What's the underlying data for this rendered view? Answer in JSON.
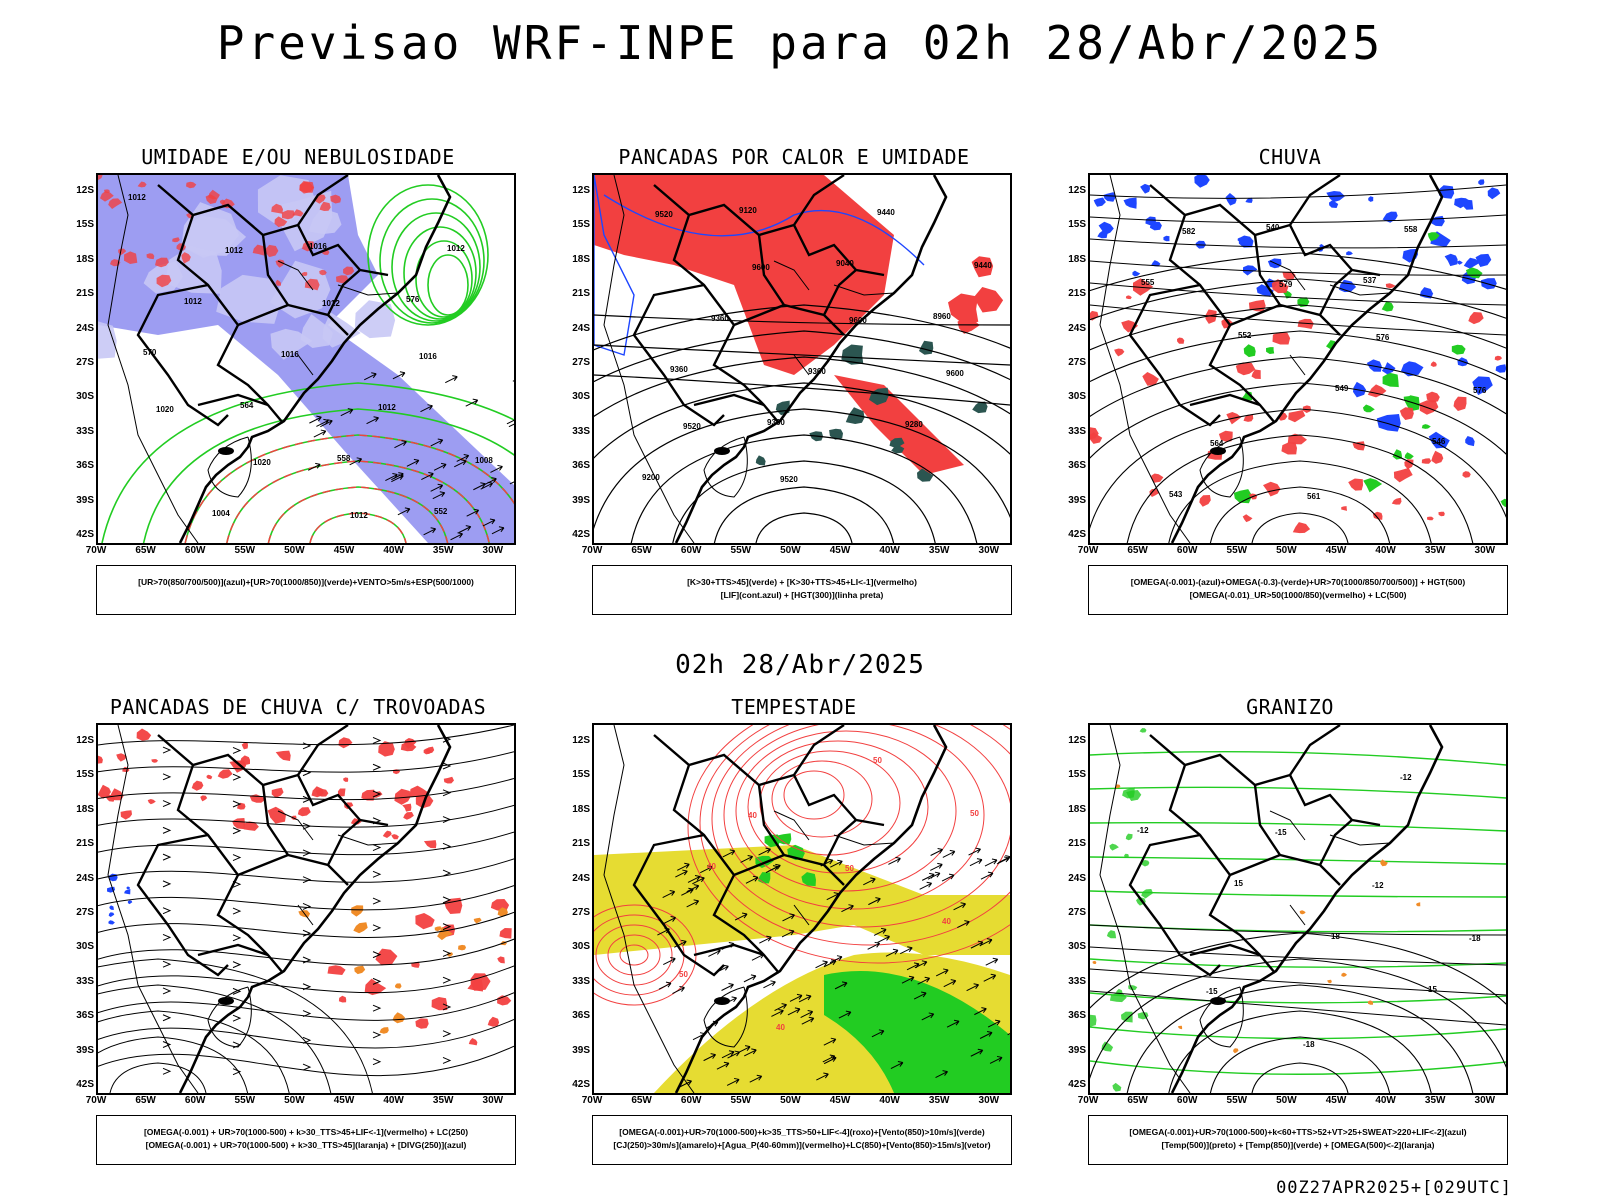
{
  "title": "Previsao WRF-INPE  para 02h 28/Abr/2025",
  "mid_date": "02h 28/Abr/2025",
  "footer": "00Z27APR2025+[029UTC]",
  "lat_labels": [
    "12S",
    "15S",
    "18S",
    "21S",
    "24S",
    "27S",
    "30S",
    "33S",
    "36S",
    "39S",
    "42S"
  ],
  "lon_labels": [
    "70W",
    "65W",
    "60W",
    "55W",
    "50W",
    "45W",
    "40W",
    "35W",
    "30W"
  ],
  "colors": {
    "humid_blue": "#8c8cf0",
    "light_blue": "#c8c8f5",
    "green": "#22cc22",
    "red": "#f24040",
    "dark_teal": "#2b5550",
    "yellow": "#e6dc32",
    "orange": "#f08c28",
    "blue": "#1e46ff"
  },
  "panels": [
    {
      "title": "UMIDADE E/OU NEBULOSIDADE",
      "legend": [
        "[UR>70(850/700/500)](azul)+[UR>70(1000/850)](verde)+VENTO>5m/s+ESP(500/1000)"
      ],
      "labels": [
        "1012",
        "1012",
        "1012",
        "1016",
        "1020",
        "1020",
        "1012",
        "1012",
        "1012",
        "1016",
        "1012",
        "1008",
        "1004",
        "1016",
        "576",
        "570",
        "564",
        "558",
        "552"
      ]
    },
    {
      "title": "PANCADAS POR CALOR E UMIDADE",
      "legend": [
        "[K>30+TTS>45](verde)  +  [K>30+TTS>45+LI<-1](vermelho)",
        "[LIF](cont.azul)  +  [HGT(300)](linha preta)"
      ],
      "labels": [
        "9520",
        "9600",
        "9600",
        "9600",
        "9520",
        "9520",
        "9440",
        "9440",
        "9360",
        "9360",
        "9280",
        "9200",
        "9120",
        "9040",
        "8960",
        "9360",
        "9360"
      ]
    },
    {
      "title": "CHUVA",
      "legend": [
        "[OMEGA(-0.001)-(azul)+OMEGA(-0.3)-(verde)+UR>70(1000/850/700/500)]  +  HGT(500)",
        "[OMEGA(-0.01)_UR>50(1000/850)(vermelho)  +  LC(500)"
      ],
      "labels": [
        "582",
        "579",
        "576",
        "576",
        "564",
        "561",
        "558",
        "555",
        "552",
        "549",
        "546",
        "543",
        "540",
        "537"
      ]
    },
    {
      "title": "PANCADAS DE CHUVA C/ TROVOADAS",
      "legend": [
        "[OMEGA(-0.001)  +  UR>70(1000-500)  +  k>30_TTS>45+LIF<-1](vermelho)  +  LC(250)",
        "[OMEGA(-0.001)  +  UR>70(1000-500)  +  k>30_TTS>45](laranja)  +  [DIVG(250)](azul)"
      ],
      "labels": []
    },
    {
      "title": "TEMPESTADE",
      "legend": [
        "[OMEGA(-0.001)+UR>70(1000-500)+k>35_TTS>50+LIF<-4](roxo)+[Vento(850)>10m/s](verde)",
        "[CJ(250)>30m/s](amarelo)+[Agua_P(40-60mm)](vermelho)+LC(850)+[Vento(850)>15m/s](vetor)"
      ],
      "labels": [
        "40",
        "50",
        "40",
        "50",
        "40",
        "50",
        "50",
        "40"
      ]
    },
    {
      "title": "GRANIZO",
      "legend": [
        "[OMEGA(-0.001)+UR>70(1000-500)+k<60+TTS>52+VT>25+SWEAT>220+LIF<-2](azul)",
        "[Temp(500)](preto)  +  [Temp(850)](verde)  +  [OMEGA(500)<-2](laranja)"
      ],
      "labels": [
        "-15",
        "-12",
        "-18",
        "-15",
        "-18",
        "-12",
        "-12",
        "15",
        "18",
        "15"
      ]
    }
  ]
}
